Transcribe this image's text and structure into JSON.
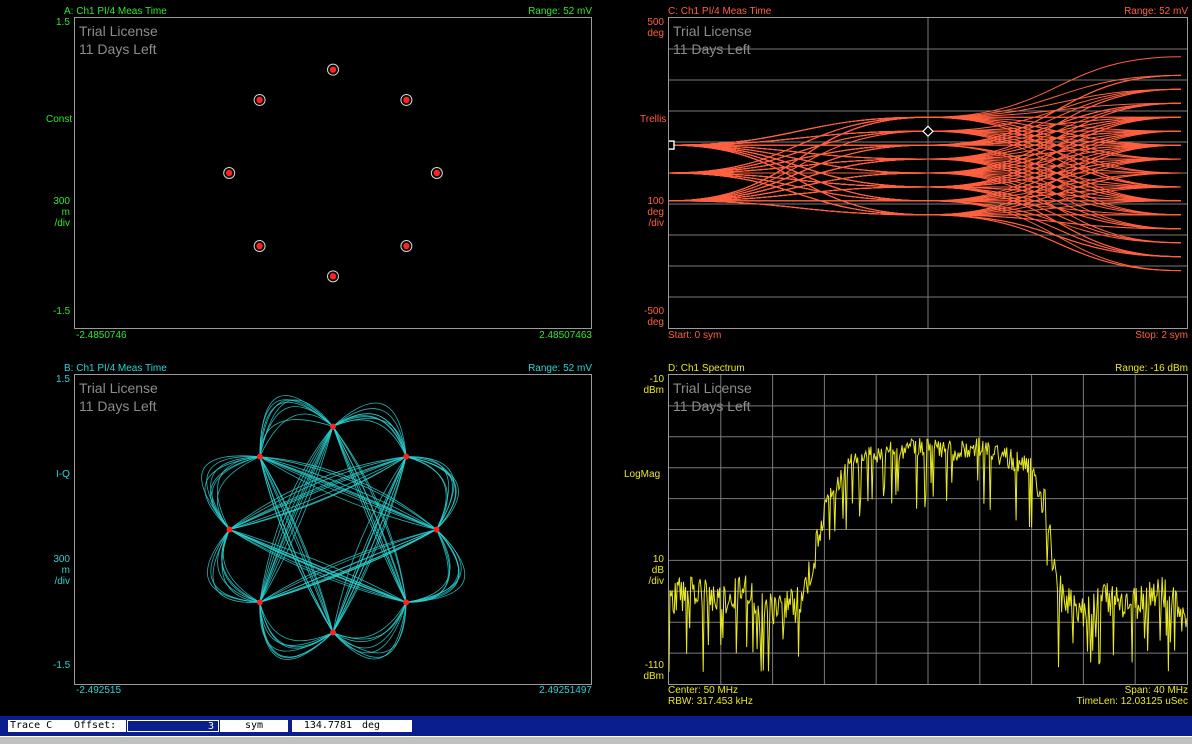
{
  "panels": {
    "a": {
      "title": "A: Ch1 PI/4 Meas Time",
      "range": "Range: 52 mV",
      "y_top": "1.5",
      "y_format": "Const",
      "y_scale": [
        "300",
        "m",
        "/div"
      ],
      "y_bottom": "-1.5",
      "x_left": "-2.4850746",
      "x_right": "2.48507463",
      "watermark": [
        "Trial License",
        "11 Days Left"
      ],
      "color": "#2ee82e"
    },
    "b": {
      "title": "B: Ch1 PI/4 Meas Time",
      "range": "Range: 52 mV",
      "y_top": "1.5",
      "y_format": "I-Q",
      "y_scale": [
        "300",
        "m",
        "/div"
      ],
      "y_bottom": "-1.5",
      "x_left": "-2.492515",
      "x_right": "2.49251497",
      "watermark": [
        "Trial License",
        "11 Days Left"
      ],
      "color": "#2ad4d4"
    },
    "c": {
      "title": "C: Ch1 PI/4 Meas Time",
      "range": "Range: 52 mV",
      "y_top": [
        "500",
        "deg"
      ],
      "y_format": "Trellis",
      "y_scale": [
        "100",
        "deg",
        "/div"
      ],
      "y_bottom": [
        "-500",
        "deg"
      ],
      "x_left": "Start: 0  sym",
      "x_right": "Stop: 2  sym",
      "watermark": [
        "Trial License",
        "11 Days Left"
      ],
      "color": "#ff6040"
    },
    "d": {
      "title": "D: Ch1 Spectrum",
      "range": "Range: -16 dBm",
      "y_top": [
        "-10",
        "dBm"
      ],
      "y_format": "LogMag",
      "y_scale": [
        "10",
        "dB",
        "/div"
      ],
      "y_bottom": [
        "-110",
        "dBm"
      ],
      "x_left_1": "Center: 50 MHz",
      "x_left_2": "RBW: 317.453 kHz",
      "x_right_1": "Span: 40 MHz",
      "x_right_2": "TimeLen: 12.03125 uSec",
      "watermark": [
        "Trial License",
        "11 Days Left"
      ],
      "color": "#e8e820"
    }
  },
  "statusbar": {
    "trace": "Trace C",
    "offset_label": "Offset:",
    "offset_value": "3",
    "offset_unit": "sym",
    "marker_value": "134.7781",
    "marker_unit": "deg"
  },
  "chart_data": [
    {
      "type": "scatter",
      "panel": "A",
      "title": "A: Ch1 PI/4 Meas Time",
      "format": "Const",
      "ylim": [
        -1.5,
        1.5
      ],
      "xlim": [
        -2.4850746,
        2.48507463
      ],
      "points": [
        {
          "x": 0.0,
          "y": 1.0
        },
        {
          "x": 0.707,
          "y": 0.707
        },
        {
          "x": 1.0,
          "y": 0.0
        },
        {
          "x": 0.707,
          "y": -0.707
        },
        {
          "x": 0.0,
          "y": -1.0
        },
        {
          "x": -0.707,
          "y": -0.707
        },
        {
          "x": -1.0,
          "y": 0.0
        },
        {
          "x": -0.707,
          "y": 0.707
        }
      ]
    },
    {
      "type": "line",
      "panel": "B",
      "title": "B: Ch1 PI/4 Meas Time",
      "format": "I-Q",
      "ylim": [
        -1.5,
        1.5
      ],
      "xlim": [
        -2.492515,
        2.49251497
      ],
      "symbol_points": [
        {
          "x": 0.0,
          "y": 1.0
        },
        {
          "x": 0.707,
          "y": 0.707
        },
        {
          "x": 1.0,
          "y": 0.0
        },
        {
          "x": 0.707,
          "y": -0.707
        },
        {
          "x": 0.0,
          "y": -1.0
        },
        {
          "x": -0.707,
          "y": -0.707
        },
        {
          "x": -1.0,
          "y": 0.0
        },
        {
          "x": -0.707,
          "y": 0.707
        }
      ]
    },
    {
      "type": "line",
      "panel": "C",
      "title": "C: Ch1 PI/4 Meas Time",
      "format": "Trellis",
      "ylim": [
        -500,
        500
      ],
      "xlim": [
        0,
        2
      ],
      "start_phases": [
        90,
        0,
        -90
      ],
      "end_phases": [
        375,
        315,
        270,
        225,
        180,
        135,
        90,
        45,
        0,
        -45,
        -90,
        -135,
        -180,
        -225,
        -270,
        -315,
        -390
      ],
      "marker": {
        "x": 1,
        "y": 134.7781
      }
    },
    {
      "type": "line",
      "panel": "D",
      "title": "D: Ch1 Spectrum",
      "format": "LogMag",
      "ylim": [
        -110,
        -10
      ],
      "x_center_mhz": 50,
      "x_span_mhz": 40,
      "x_mhz": [
        30,
        32,
        34,
        36,
        38,
        40,
        41,
        42,
        44,
        46,
        48,
        50,
        52,
        54,
        56,
        58,
        59,
        60,
        62,
        64,
        66,
        68,
        70
      ],
      "y_dbm": [
        -82,
        -80,
        -84,
        -79,
        -86,
        -84,
        -74,
        -50,
        -35,
        -32,
        -31,
        -30,
        -31,
        -30,
        -33,
        -37,
        -52,
        -80,
        -86,
        -82,
        -85,
        -79,
        -90
      ]
    }
  ]
}
